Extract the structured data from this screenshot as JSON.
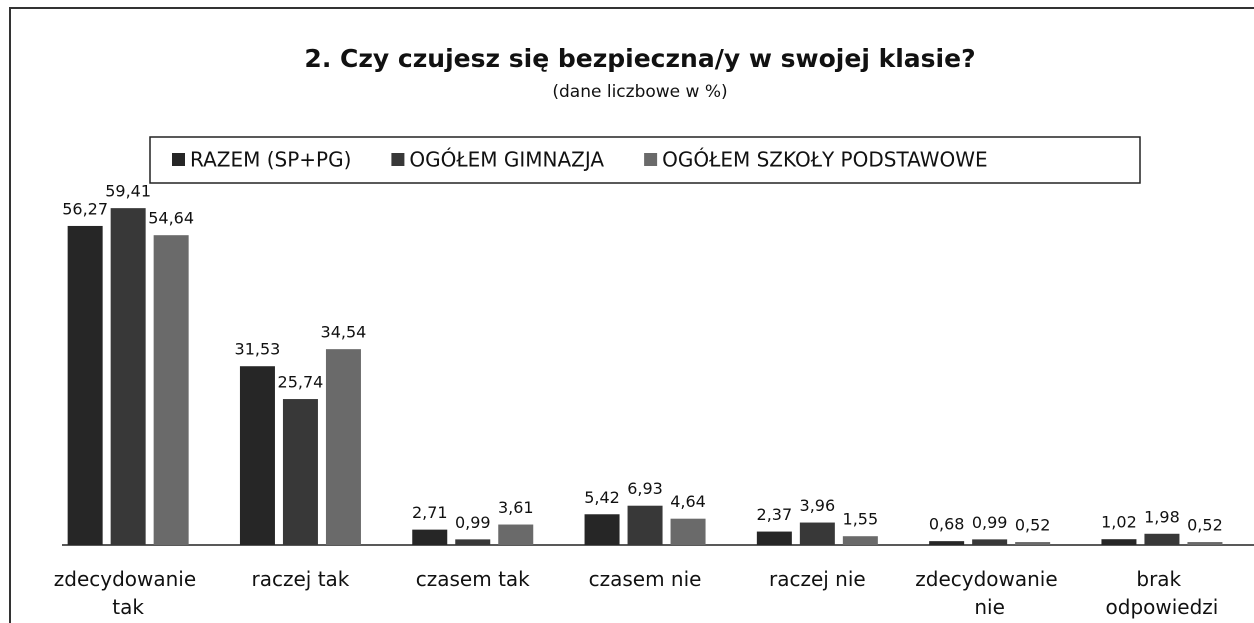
{
  "chart_data": {
    "type": "bar",
    "title": "2. Czy czujesz się bezpieczna/y w swojej klasie?",
    "subtitle": "(dane liczbowe w %)",
    "categories": [
      "zdecydowanie tak",
      "raczej tak",
      "czasem tak",
      "czasem nie",
      "raczej nie",
      "zdecydowanie nie",
      "brak odpowiedzi"
    ],
    "series": [
      {
        "name": "RAZEM (SP+PG)",
        "color": "#262626",
        "values": [
          56.27,
          31.53,
          2.71,
          5.42,
          2.37,
          0.68,
          1.02
        ],
        "value_labels": [
          "56,27",
          "31,53",
          "2,71",
          "5,42",
          "2,37",
          "0,68",
          "1,02"
        ]
      },
      {
        "name": "OGÓŁEM GIMNAZJA",
        "color": "#383838",
        "values": [
          59.41,
          25.74,
          0.99,
          6.93,
          3.96,
          0.99,
          1.98
        ],
        "value_labels": [
          "59,41",
          "25,74",
          "0,99",
          "6,93",
          "3,96",
          "0,99",
          "1,98"
        ]
      },
      {
        "name": "OGÓŁEM SZKOŁY PODSTAWOWE",
        "color": "#6a6a6a",
        "values": [
          54.64,
          34.54,
          3.61,
          4.64,
          1.55,
          0.52,
          0.52
        ],
        "value_labels": [
          "54,64",
          "34,54",
          "3,61",
          "4,64",
          "1,55",
          "0,52",
          "0,52"
        ]
      }
    ],
    "legend": "top"
  }
}
